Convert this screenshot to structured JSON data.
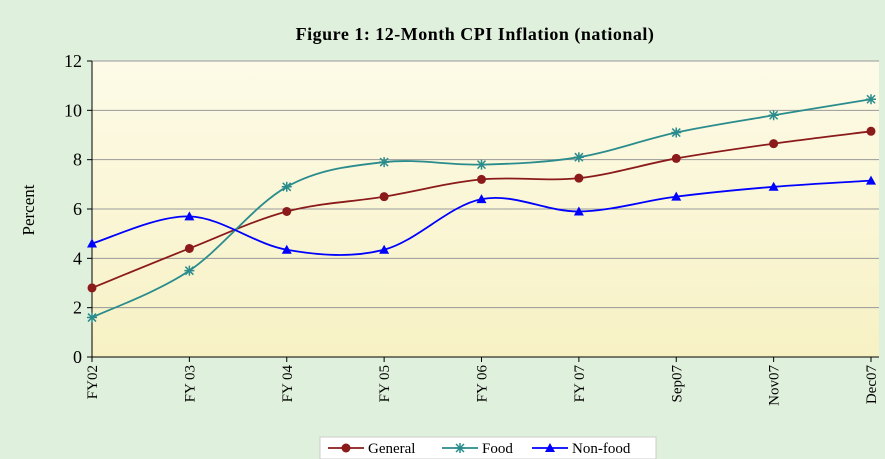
{
  "chart_data": {
    "type": "line",
    "title": "Figure 1:  12-Month CPI Inflation (national)",
    "y_label": "Percent",
    "categories": [
      "FY02",
      "FY 03",
      "FY 04",
      "FY 05",
      "FY 06",
      "FY 07",
      "Sep07",
      "Nov07",
      "Dec07"
    ],
    "series": [
      {
        "name": "General",
        "color": "#8b1a1a",
        "marker": "circle",
        "values": [
          2.8,
          4.4,
          5.9,
          6.5,
          7.2,
          7.25,
          8.05,
          8.65,
          9.15
        ]
      },
      {
        "name": "Food",
        "color": "#2a8c8c",
        "marker": "star",
        "values": [
          1.6,
          3.5,
          6.9,
          7.9,
          7.8,
          8.1,
          9.1,
          9.8,
          10.45
        ]
      },
      {
        "name": "Non-food",
        "color": "#0000ff",
        "marker": "triangle",
        "values": [
          4.6,
          5.7,
          4.35,
          4.35,
          6.4,
          5.9,
          6.5,
          6.9,
          7.15
        ]
      }
    ],
    "ylim": [
      0,
      12
    ],
    "yticks": [
      0,
      2,
      4,
      6,
      8,
      10,
      12
    ],
    "grid": true,
    "legend": "bottom",
    "smooth": true
  }
}
